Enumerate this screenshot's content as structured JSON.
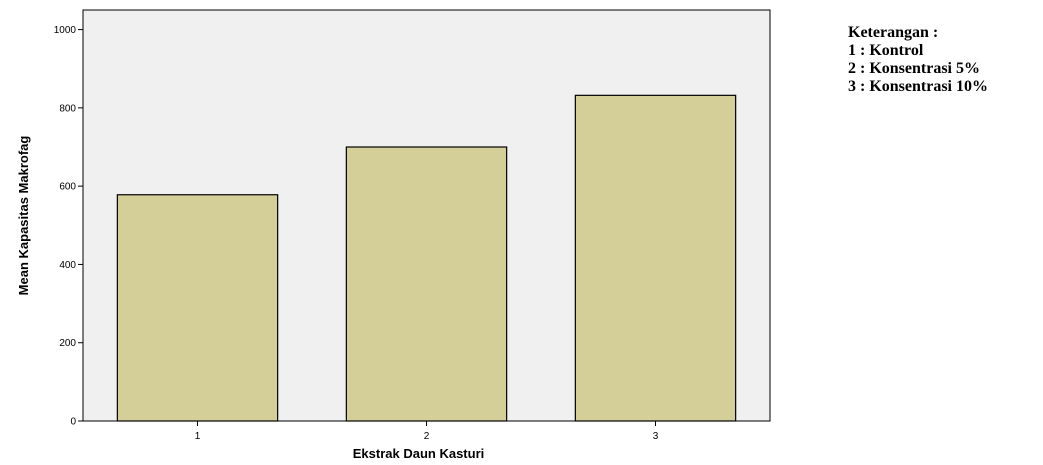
{
  "chart_data": {
    "type": "bar",
    "categories": [
      "1",
      "2",
      "3"
    ],
    "values": [
      578,
      700,
      832
    ],
    "title": "",
    "xlabel": "Ekstrak Daun Kasturi",
    "ylabel": "Mean Kapasitas Makrofag",
    "ylim": [
      0,
      1050
    ],
    "yticks": [
      0,
      200,
      400,
      600,
      800,
      1000
    ],
    "grid": false,
    "colors": {
      "bar": "#d4cf98",
      "plot_background": "#f0f0f0",
      "stroke": "#000000"
    }
  },
  "legend": {
    "title": "Keterangan :",
    "items": [
      "1 : Kontrol",
      "2 : Konsentrasi 5%",
      "3 : Konsentrasi 10%"
    ]
  }
}
